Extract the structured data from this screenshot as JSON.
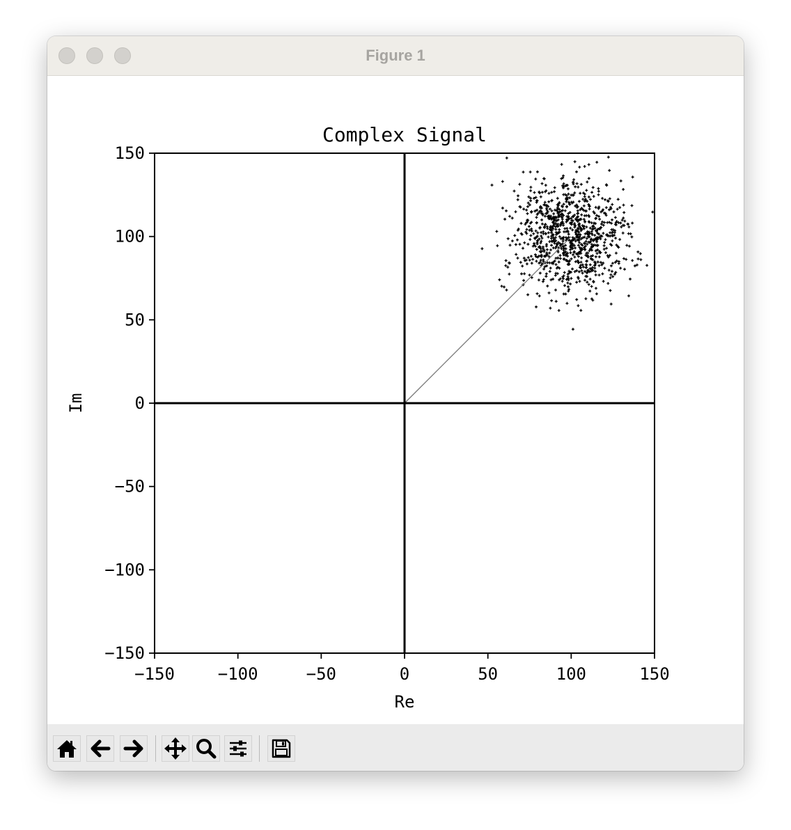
{
  "window": {
    "title": "Figure 1"
  },
  "toolbar": {
    "buttons": [
      {
        "icon": "home-icon"
      },
      {
        "icon": "back-arrow-icon"
      },
      {
        "icon": "forward-arrow-icon"
      },
      {
        "icon": "pan-move-icon"
      },
      {
        "icon": "zoom-magnifier-icon"
      },
      {
        "icon": "configure-subplots-icon"
      },
      {
        "icon": "save-floppy-icon"
      }
    ]
  },
  "chart_data": {
    "type": "scatter",
    "title": "Complex Signal",
    "xlabel": "Re",
    "ylabel": "Im",
    "xlim": [
      -150,
      150
    ],
    "ylim": [
      -150,
      150
    ],
    "xticks": [
      -150,
      -100,
      -50,
      0,
      50,
      100,
      150
    ],
    "yticks": [
      -150,
      -100,
      -50,
      0,
      50,
      100,
      150
    ],
    "xtick_labels": [
      "−150",
      "−100",
      "−50",
      "0",
      "50",
      "100",
      "150"
    ],
    "ytick_labels": [
      "−150",
      "−100",
      "−50",
      "0",
      "50",
      "100",
      "150"
    ],
    "grid": false,
    "axis_lines_at_zero": true,
    "mean_vector": {
      "from": [
        0,
        0
      ],
      "to": [
        100,
        100
      ],
      "color": "#777777"
    },
    "scatter": {
      "approx_center": [
        100,
        100
      ],
      "approx_std": [
        17,
        17
      ],
      "approx_count": 1000,
      "marker": "+",
      "color": "#000000"
    }
  }
}
